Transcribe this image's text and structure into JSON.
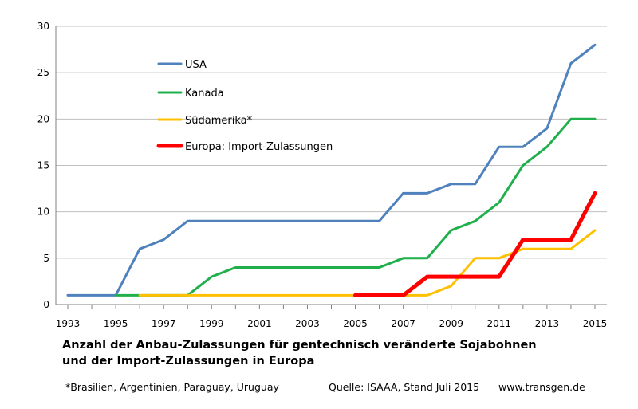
{
  "chart_data": {
    "type": "line",
    "x": [
      1993,
      1994,
      1995,
      1996,
      1997,
      1998,
      1999,
      2000,
      2001,
      2002,
      2003,
      2004,
      2005,
      2006,
      2007,
      2008,
      2009,
      2010,
      2011,
      2012,
      2013,
      2014,
      2015
    ],
    "xticks": [
      1993,
      1995,
      1997,
      1999,
      2001,
      2003,
      2005,
      2007,
      2009,
      2011,
      2013,
      2015
    ],
    "xlim": [
      1992.5,
      2015.5
    ],
    "ylim": [
      0,
      30
    ],
    "yticks": [
      0,
      5,
      10,
      15,
      20,
      25,
      30
    ],
    "grid": "horizontal",
    "legend_position": "top-left",
    "series": [
      {
        "name": "USA",
        "color": "#4F81BD",
        "points": [
          [
            1993,
            1
          ],
          [
            1994,
            1
          ],
          [
            1995,
            1
          ],
          [
            1996,
            6
          ],
          [
            1997,
            7
          ],
          [
            1998,
            9
          ],
          [
            1999,
            9
          ],
          [
            2000,
            9
          ],
          [
            2001,
            9
          ],
          [
            2002,
            9
          ],
          [
            2003,
            9
          ],
          [
            2004,
            9
          ],
          [
            2005,
            9
          ],
          [
            2006,
            9
          ],
          [
            2007,
            12
          ],
          [
            2008,
            12
          ],
          [
            2009,
            13
          ],
          [
            2010,
            13
          ],
          [
            2011,
            17
          ],
          [
            2012,
            17
          ],
          [
            2013,
            19
          ],
          [
            2014,
            26
          ],
          [
            2015,
            28
          ]
        ]
      },
      {
        "name": "Kanada",
        "color": "#1FB04B",
        "points": [
          [
            1995,
            1
          ],
          [
            1996,
            1
          ],
          [
            1997,
            1
          ],
          [
            1998,
            1
          ],
          [
            1999,
            3
          ],
          [
            2000,
            4
          ],
          [
            2001,
            4
          ],
          [
            2002,
            4
          ],
          [
            2003,
            4
          ],
          [
            2004,
            4
          ],
          [
            2005,
            4
          ],
          [
            2006,
            4
          ],
          [
            2007,
            5
          ],
          [
            2008,
            5
          ],
          [
            2009,
            8
          ],
          [
            2010,
            9
          ],
          [
            2011,
            11
          ],
          [
            2012,
            15
          ],
          [
            2013,
            17
          ],
          [
            2014,
            20
          ],
          [
            2015,
            20
          ]
        ]
      },
      {
        "name": "Südamerika*",
        "color": "#FFC000",
        "points": [
          [
            1996,
            1
          ],
          [
            1997,
            1
          ],
          [
            1998,
            1
          ],
          [
            1999,
            1
          ],
          [
            2000,
            1
          ],
          [
            2001,
            1
          ],
          [
            2002,
            1
          ],
          [
            2003,
            1
          ],
          [
            2004,
            1
          ],
          [
            2005,
            1
          ],
          [
            2006,
            1
          ],
          [
            2007,
            1
          ],
          [
            2008,
            1
          ],
          [
            2009,
            2
          ],
          [
            2010,
            5
          ],
          [
            2011,
            5
          ],
          [
            2012,
            6
          ],
          [
            2013,
            6
          ],
          [
            2014,
            6
          ],
          [
            2015,
            8
          ]
        ]
      },
      {
        "name": "Europa: Import-Zulassungen",
        "color": "#FF0000",
        "points": [
          [
            2005,
            1
          ],
          [
            2006,
            1
          ],
          [
            2007,
            1
          ],
          [
            2008,
            3
          ],
          [
            2009,
            3
          ],
          [
            2010,
            3
          ],
          [
            2011,
            3
          ],
          [
            2012,
            7
          ],
          [
            2013,
            7
          ],
          [
            2014,
            7
          ],
          [
            2015,
            12
          ]
        ]
      }
    ]
  },
  "caption": {
    "line1": "Anzahl der Anbau-Zulassungen für gentechnisch veränderte Sojabohnen",
    "line2": "und der Import-Zulassungen in Europa"
  },
  "footer": {
    "note": "*Brasilien, Argentinien, Paraguay, Uruguay",
    "source": "Quelle: ISAAA, Stand Juli 2015",
    "website": "www.transgen.de"
  }
}
